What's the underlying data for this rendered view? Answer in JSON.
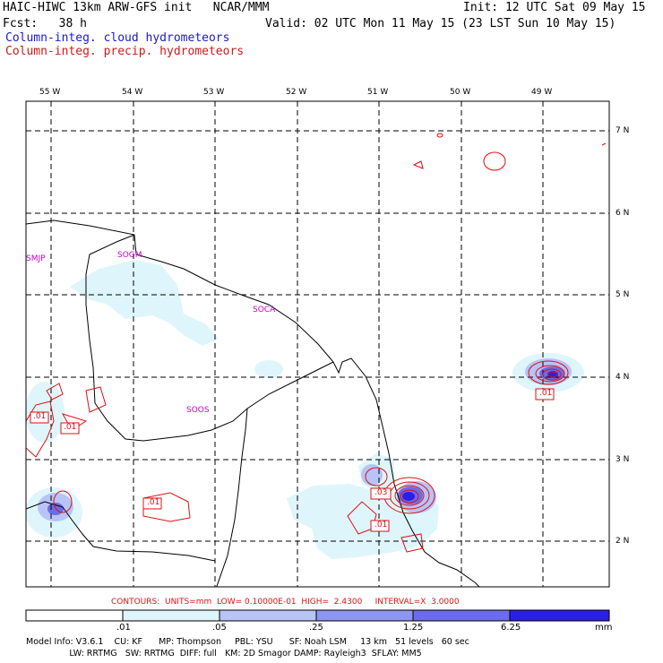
{
  "header": {
    "title_left": "HAIC-HIWC 13km ARW-GFS init   NCAR/MMM",
    "init": "Init: 12 UTC Sat 09 May 15",
    "fcst": "Fcst:   38 h",
    "valid": "Valid: 02 UTC Mon 11 May 15 (23 LST Sun 10 May 15)",
    "field1": "Column-integ. cloud hydrometeors",
    "field2": "Column-integ. precip. hydrometeors"
  },
  "axes": {
    "lon_labels": [
      "55 W",
      "54 W",
      "53 W",
      "52 W",
      "51 W",
      "50 W",
      "49 W"
    ],
    "lat_labels": [
      "7 N",
      "6 N",
      "5 N",
      "4 N",
      "3 N",
      "2 N"
    ]
  },
  "stations": [
    "SMJP",
    "SOGM",
    "SOCA",
    "SOOS"
  ],
  "contour_labels": [
    ".01",
    ".01",
    ".01",
    ".03",
    ".01",
    ".01"
  ],
  "contour_info": "CONTOURS:  UNITS=mm  LOW= 0.10000E-01  HIGH=  2.4300     INTERVAL=X  3.0000",
  "colorbar": {
    "ticks": [
      ".01",
      ".05",
      ".25",
      "1.25",
      "6.25"
    ],
    "unit": "mm",
    "colors": [
      "#ffffff",
      "#dff5fc",
      "#b8c3f8",
      "#8e95f0",
      "#6a6cea",
      "#4543e6",
      "#2b1fe6"
    ]
  },
  "footer": {
    "line1": "Model Info: V3.6.1    CU: KF      MP: Thompson     PBL: YSU      SF: Noah LSM     13 km   51 levels   60 sec",
    "line2": "                LW: RRTMG   SW: RRTMG  DIFF: full   KM: 2D Smagor DAMP: Rayleigh3  SFLAY: MM5"
  }
}
